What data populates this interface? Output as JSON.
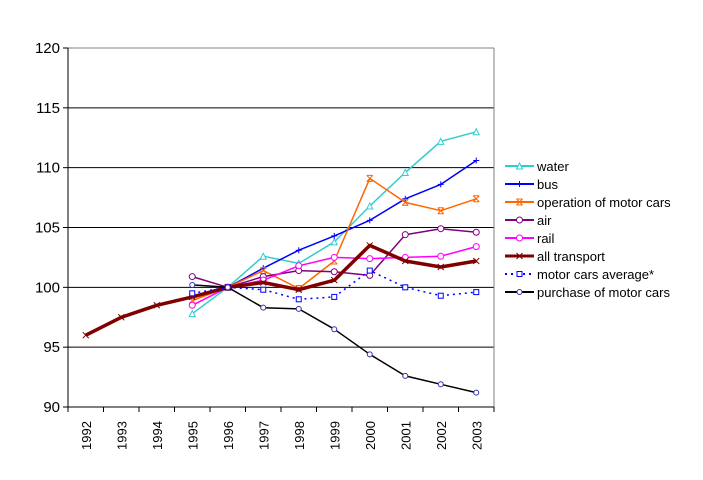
{
  "chart_data": {
    "type": "line",
    "title": "",
    "xlabel": "",
    "ylabel": "",
    "ylim": [
      90,
      120
    ],
    "yticks": [
      90,
      95,
      100,
      105,
      110,
      115,
      120
    ],
    "grid": "horizontal",
    "legend_position": "right",
    "categories": [
      "1992",
      "1993",
      "1994",
      "1995",
      "1996",
      "1997",
      "1998",
      "1999",
      "2000",
      "2001",
      "2002",
      "2003"
    ],
    "series": [
      {
        "name": "water",
        "color": "#33CCCC",
        "marker": "triangle",
        "dash": false,
        "width": "normal",
        "values": [
          null,
          null,
          null,
          97.8,
          100,
          102.6,
          102.0,
          103.8,
          106.8,
          109.6,
          112.2,
          113.0
        ]
      },
      {
        "name": "bus",
        "color": "#0000FF",
        "marker": "plus",
        "dash": false,
        "width": "normal",
        "values": [
          null,
          null,
          null,
          null,
          100,
          101.6,
          103.1,
          104.3,
          105.6,
          107.4,
          108.6,
          110.6
        ]
      },
      {
        "name": "operation of motor cars",
        "color": "#FF6600",
        "marker": "star",
        "dash": false,
        "width": "normal",
        "values": [
          null,
          null,
          null,
          98.9,
          100,
          101.4,
          99.9,
          102.2,
          109.1,
          107.1,
          106.4,
          107.4
        ]
      },
      {
        "name": "air",
        "color": "#800080",
        "marker": "circle",
        "dash": false,
        "width": "normal",
        "values": [
          null,
          null,
          null,
          100.9,
          100,
          100.9,
          101.4,
          101.3,
          101.0,
          104.4,
          104.9,
          104.6
        ]
      },
      {
        "name": "rail",
        "color": "#FF00FF",
        "marker": "circle",
        "dash": false,
        "width": "normal",
        "values": [
          null,
          null,
          null,
          98.5,
          100,
          100.6,
          101.8,
          102.5,
          102.4,
          102.5,
          102.6,
          103.4
        ]
      },
      {
        "name": "all transport",
        "color": "#800000",
        "marker": "x",
        "dash": false,
        "width": "thick",
        "values": [
          96.0,
          97.5,
          98.5,
          99.2,
          100,
          100.4,
          99.8,
          100.6,
          103.5,
          102.2,
          101.7,
          102.2
        ]
      },
      {
        "name": "motor cars average*",
        "color": "#0000FF",
        "marker": "square",
        "dash": true,
        "width": "normal",
        "values": [
          null,
          null,
          null,
          99.5,
          100,
          99.8,
          99.0,
          99.2,
          101.4,
          100.0,
          99.3,
          99.6
        ]
      },
      {
        "name": "purchase of motor cars",
        "color": "#000000",
        "marker": "circle-small",
        "dash": false,
        "width": "normal",
        "values": [
          null,
          null,
          null,
          100.2,
          100,
          98.3,
          98.2,
          96.5,
          94.4,
          92.6,
          91.9,
          91.2
        ]
      }
    ]
  }
}
